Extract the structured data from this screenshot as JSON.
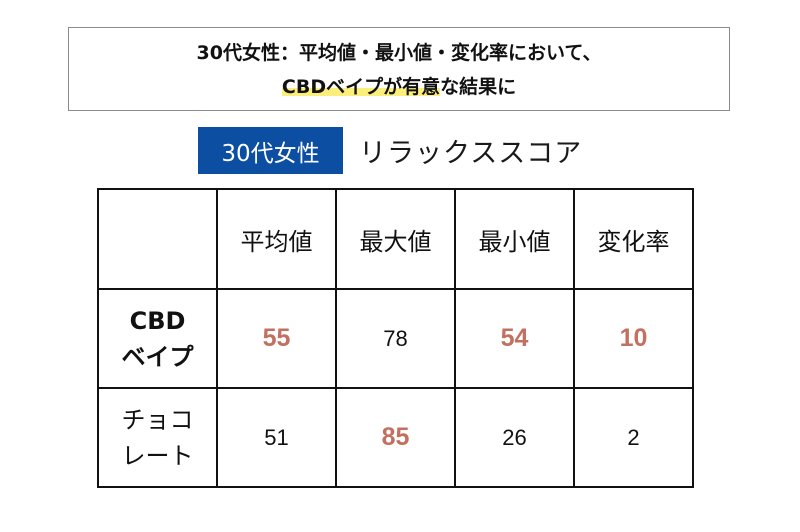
{
  "headline": {
    "line1": "30代女性：平均値・最小値・変化率において、",
    "line2_highlight": "CBDベイプが有意",
    "line2_rest": "な結果に"
  },
  "subtitle": {
    "tag": "30代女性",
    "text": "リラックススコア"
  },
  "table": {
    "headers": [
      "",
      "平均値",
      "最大値",
      "最小値",
      "変化率"
    ],
    "rows": [
      {
        "label_lines": [
          "CBD",
          "ベイプ"
        ],
        "label_bold": true,
        "cells": [
          {
            "value": "55",
            "highlight": true
          },
          {
            "value": "78",
            "highlight": false
          },
          {
            "value": "54",
            "highlight": true
          },
          {
            "value": "10",
            "highlight": true
          }
        ]
      },
      {
        "label_lines": [
          "チョコ",
          "レート"
        ],
        "label_bold": false,
        "cells": [
          {
            "value": "51",
            "highlight": false
          },
          {
            "value": "85",
            "highlight": true
          },
          {
            "value": "26",
            "highlight": false
          },
          {
            "value": "2",
            "highlight": false
          }
        ]
      }
    ]
  },
  "colors": {
    "tag_background": "#0b4ea2",
    "highlight_value": "#c2705f",
    "normal_value": "#111111",
    "marker_yellow": "#fbee7a"
  }
}
